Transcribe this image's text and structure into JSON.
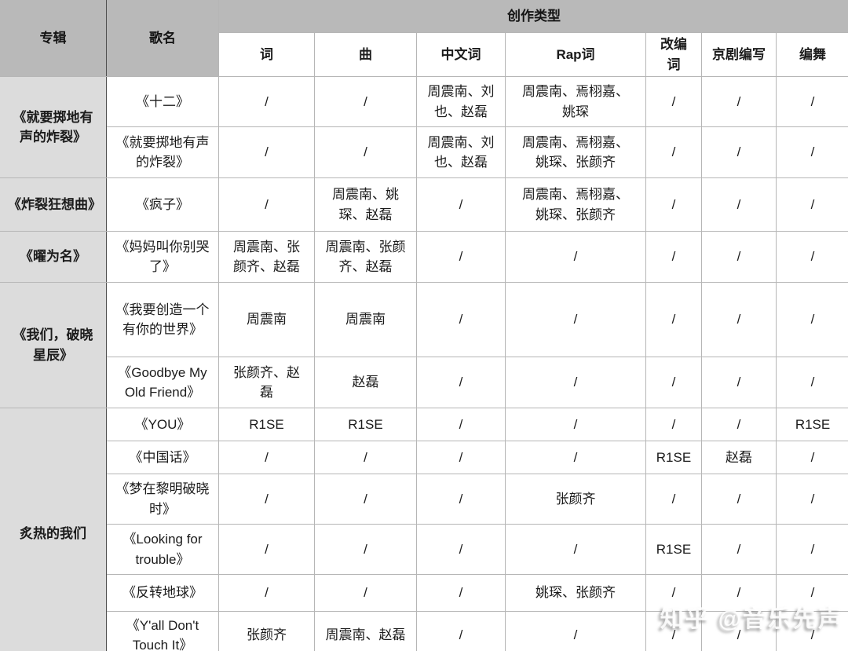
{
  "header": {
    "album": "专辑",
    "song": "歌名",
    "creation_type": "创作类型",
    "subcolumns": [
      "词",
      "曲",
      "中文词",
      "Rap词",
      "改编词",
      "京剧编写",
      "编舞"
    ]
  },
  "rows": [
    {
      "album": "《就要掷地有声的炸裂》",
      "album_rowspan": 2,
      "song": "《十二》",
      "cells": [
        "/",
        "/",
        "周震南、刘也、赵磊",
        "周震南、焉栩嘉、姚琛",
        "/",
        "/",
        "/"
      ]
    },
    {
      "song": "《就要掷地有声的炸裂》",
      "cells": [
        "/",
        "/",
        "周震南、刘也、赵磊",
        "周震南、焉栩嘉、姚琛、张颜齐",
        "/",
        "/",
        "/"
      ]
    },
    {
      "album": "《炸裂狂想曲》",
      "album_rowspan": 1,
      "song": "《疯子》",
      "cells": [
        "/",
        "周震南、姚琛、赵磊",
        "/",
        "周震南、焉栩嘉、姚琛、张颜齐",
        "/",
        "/",
        "/"
      ]
    },
    {
      "album": "《曜为名》",
      "album_rowspan": 1,
      "song": "《妈妈叫你别哭了》",
      "cells": [
        "周震南、张颜齐、赵磊",
        "周震南、张颜齐、赵磊",
        "/",
        "/",
        "/",
        "/",
        "/"
      ]
    },
    {
      "album": "《我们，破晓星辰》",
      "album_rowspan": 2,
      "song": "《我要创造一个有你的世界》",
      "cells": [
        "周震南",
        "周震南",
        "/",
        "/",
        "/",
        "/",
        "/"
      ]
    },
    {
      "song": "《Goodbye My Old Friend》",
      "cells": [
        "张颜齐、赵磊",
        "赵磊",
        "/",
        "/",
        "/",
        "/",
        "/"
      ]
    },
    {
      "album": "炙热的我们",
      "album_rowspan": 6,
      "song": "《YOU》",
      "cells": [
        "R1SE",
        "R1SE",
        "/",
        "/",
        "/",
        "/",
        "R1SE"
      ]
    },
    {
      "song": "《中国话》",
      "cells": [
        "/",
        "/",
        "/",
        "/",
        "R1SE",
        "赵磊",
        "/"
      ]
    },
    {
      "song": "《梦在黎明破晓时》",
      "cells": [
        "/",
        "/",
        "/",
        "张颜齐",
        "/",
        "/",
        "/"
      ]
    },
    {
      "song": "《Looking for trouble》",
      "cells": [
        "/",
        "/",
        "/",
        "/",
        "R1SE",
        "/",
        "/"
      ]
    },
    {
      "song": "《反转地球》",
      "cells": [
        "/",
        "/",
        "/",
        "姚琛、张颜齐",
        "/",
        "/",
        "/"
      ]
    },
    {
      "song": "《Y'all Don't Touch It》",
      "cells": [
        "张颜齐",
        "周震南、赵磊",
        "/",
        "/",
        "/",
        "/",
        "/"
      ]
    },
    {
      "album": "",
      "album_rowspan": 1,
      "song": "",
      "cells": [
        "",
        "",
        "",
        "",
        "",
        "",
        ""
      ]
    }
  ],
  "watermark": {
    "brand": "知乎",
    "handle": "@音乐先声"
  },
  "colors": {
    "header_bg": "#b9b9b9",
    "album_bg": "#dcdcdc",
    "border": "#b6b6b6",
    "divider_dark": "#4f4f4f",
    "text": "#1b1b1b"
  }
}
